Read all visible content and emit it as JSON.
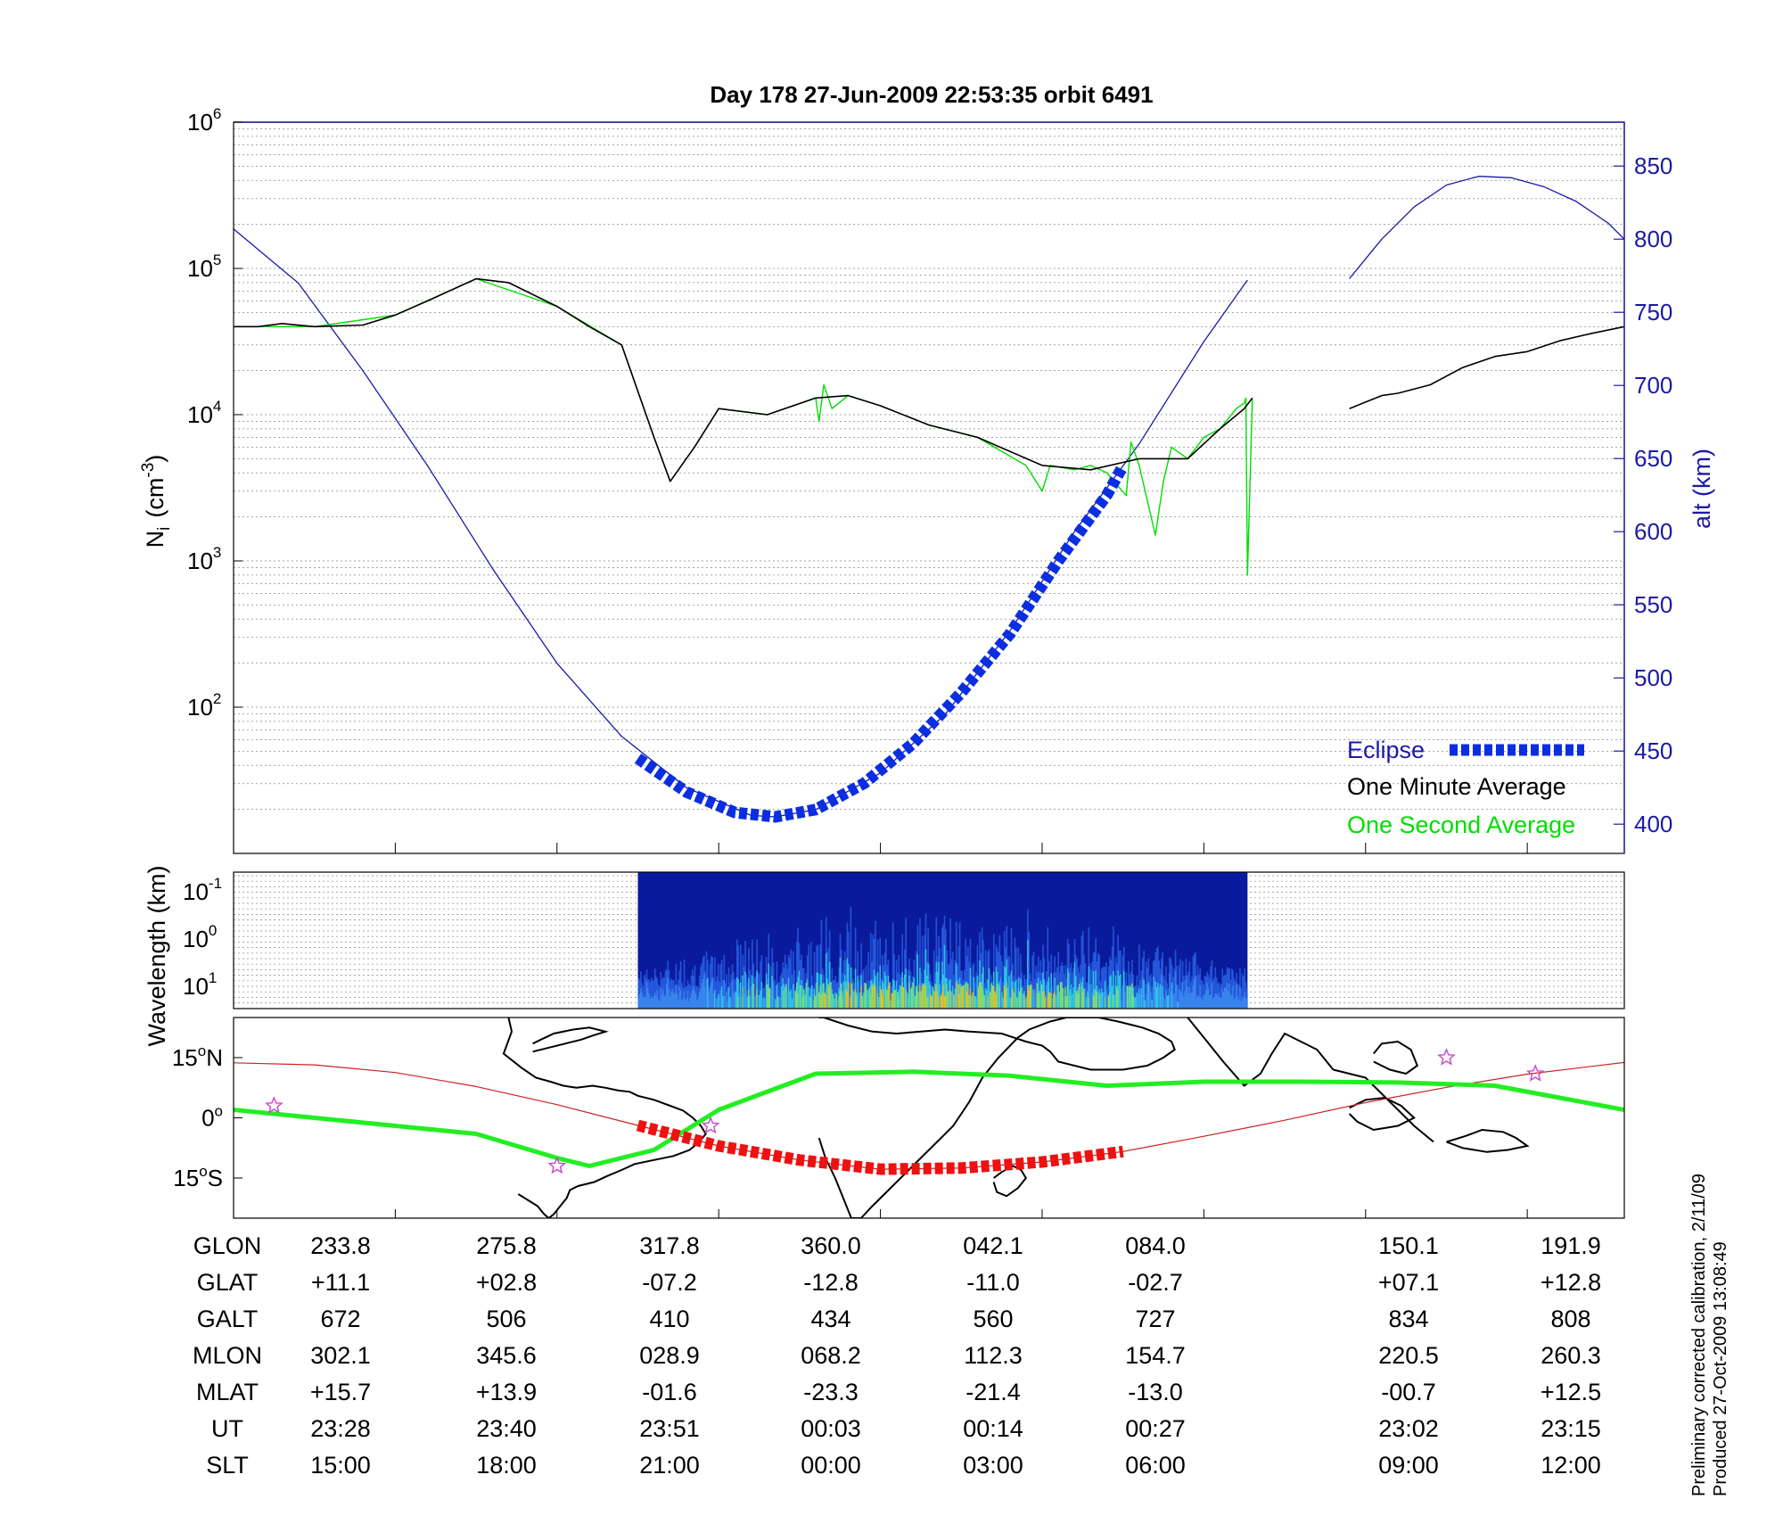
{
  "colors": {
    "altitude": "#1a1aa6",
    "one_second": "#00dd00",
    "one_minute": "#000000",
    "eclipse": "#0a2ee0",
    "eclipse_map": "#ee1111",
    "ground_track": "#cc2222",
    "magnetic_equator": "#22ee22",
    "star_marker": "#cc44cc"
  },
  "chart_data": [
    {
      "type": "line",
      "title": "Day 178  27-Jun-2009 22:53:35   orbit 6491",
      "ylabel": "N",
      "ylabel_sub": "i",
      "ylabel_unit": "(cm",
      "ylabel_exp": "-3",
      "ylabel_close": ")",
      "yscale": "log",
      "ylim": [
        10,
        1000000
      ],
      "yticks": [
        {
          "base": "10",
          "exp": "2",
          "value": 100
        },
        {
          "base": "10",
          "exp": "3",
          "value": 1000
        },
        {
          "base": "10",
          "exp": "4",
          "value": 10000
        },
        {
          "base": "10",
          "exp": "5",
          "value": 100000
        },
        {
          "base": "10",
          "exp": "6",
          "value": 1000000
        }
      ],
      "y2label": "alt (km)",
      "y2lim": [
        380,
        880
      ],
      "y2ticks": [
        "400",
        "450",
        "500",
        "550",
        "600",
        "650",
        "700",
        "750",
        "800",
        "850"
      ],
      "xlim": [
        0,
        8.6
      ],
      "grid": true,
      "legend_position": "bottom-right",
      "legend": {
        "eclipse": "Eclipse",
        "one_minute": "One Minute Average",
        "one_second": "One Second Average"
      },
      "series": [
        {
          "name": "One Minute Average",
          "x": [
            0,
            0.15,
            0.3,
            0.5,
            0.8,
            1.0,
            1.2,
            1.5,
            1.7,
            2.0,
            2.2,
            2.4,
            2.6,
            2.7,
            2.85,
            3.0,
            3.3,
            3.6,
            3.8,
            4.0,
            4.3,
            4.6,
            5.0,
            5.3,
            5.6,
            5.9,
            6.1,
            6.25,
            6.3
          ],
          "y": [
            40000,
            40000,
            42000,
            40000,
            41000,
            48000,
            60000,
            85000,
            80000,
            55000,
            40000,
            30000,
            7000,
            3500,
            6000,
            11000,
            10000,
            13000,
            13500,
            11500,
            8500,
            7000,
            4500,
            4200,
            5000,
            5000,
            8000,
            11000,
            13000
          ]
        },
        {
          "name": "One Second Average",
          "x": [
            0,
            0.5,
            1.0,
            1.5,
            2.0,
            2.4,
            2.6,
            2.7,
            2.85,
            3.0,
            3.3,
            3.6,
            3.62,
            3.65,
            3.7,
            3.8,
            4.0,
            4.3,
            4.6,
            4.9,
            5.0,
            5.05,
            5.2,
            5.3,
            5.4,
            5.52,
            5.55,
            5.6,
            5.7,
            5.75,
            5.8,
            5.9,
            6.0,
            6.1,
            6.2,
            6.25,
            6.26,
            6.27,
            6.3
          ],
          "y": [
            40000,
            40000,
            48000,
            85000,
            55000,
            30000,
            7000,
            3500,
            6000,
            11000,
            10000,
            13000,
            9000,
            16000,
            11000,
            13500,
            11500,
            8500,
            7000,
            4500,
            3000,
            4500,
            4200,
            4500,
            4000,
            2800,
            6500,
            4500,
            1500,
            3500,
            6000,
            5000,
            7000,
            8000,
            11000,
            12000,
            13000,
            800,
            13000
          ]
        },
        {
          "name": "One Minute Average (second segment)",
          "x": [
            6.9,
            7.1,
            7.2,
            7.4,
            7.6,
            7.8,
            8.0,
            8.2,
            8.4,
            8.6
          ],
          "y": [
            11000,
            13500,
            14000,
            16000,
            21000,
            25000,
            27000,
            32000,
            36000,
            40000
          ]
        },
        {
          "name": "alt (km)",
          "axis": "y2",
          "x": [
            0,
            0.4,
            0.8,
            1.2,
            1.6,
            2.0,
            2.4,
            2.8,
            3.2,
            3.35,
            3.6,
            4.0,
            4.4,
            4.8,
            5.2,
            5.6,
            6.0,
            6.27
          ],
          "y": [
            807,
            770,
            710,
            645,
            575,
            510,
            460,
            425,
            406,
            405,
            410,
            435,
            475,
            532,
            600,
            660,
            730,
            772
          ]
        },
        {
          "name": "alt (km) (second segment)",
          "axis": "y2",
          "x": [
            6.9,
            7.1,
            7.3,
            7.5,
            7.7,
            7.9,
            8.1,
            8.3,
            8.5,
            8.6
          ],
          "y": [
            773,
            800,
            822,
            837,
            843,
            842,
            836,
            826,
            811,
            800
          ]
        },
        {
          "name": "Eclipse",
          "axis": "y2",
          "x": [
            2.5,
            2.8,
            3.1,
            3.35,
            3.6,
            3.9,
            4.2,
            4.5,
            4.8,
            5.1,
            5.4,
            5.5
          ],
          "y": [
            445,
            422,
            408,
            405,
            410,
            428,
            455,
            490,
            530,
            580,
            625,
            645
          ]
        }
      ]
    },
    {
      "type": "heatmap",
      "ylabel": "Wavelength (km)",
      "yscale": "log",
      "yticks": [
        {
          "base": "10",
          "exp": "-1"
        },
        {
          "base": "10",
          "exp": "0"
        },
        {
          "base": "10",
          "exp": "1"
        }
      ],
      "x_extent": [
        2.5,
        6.27
      ],
      "xlim": [
        0,
        8.6
      ]
    },
    {
      "type": "line",
      "title": "",
      "yticks": [
        {
          "num": "15",
          "unit": "o",
          "hemi": "N",
          "lat": 15
        },
        {
          "num": "0",
          "unit": "o",
          "hemi": "",
          "lat": 0
        },
        {
          "num": "15",
          "unit": "o",
          "hemi": "S",
          "lat": -15
        }
      ],
      "xlim": [
        0,
        8.6
      ],
      "ylim": [
        -25,
        25
      ],
      "series": [
        {
          "name": "ground track",
          "x": [
            0,
            0.5,
            1.0,
            1.5,
            2.0,
            2.5,
            3.0,
            3.5,
            4.0,
            4.5,
            5.0,
            5.5,
            6.0,
            6.5,
            7.0,
            7.5,
            8.0,
            8.6
          ],
          "y": [
            13.7,
            13.2,
            11.3,
            7.8,
            3.3,
            -1.9,
            -7.0,
            -10.5,
            -12.8,
            -12.5,
            -11.0,
            -8.4,
            -4.6,
            -0.6,
            3.8,
            7.6,
            10.9,
            13.8
          ]
        },
        {
          "name": "eclipse",
          "x": [
            2.5,
            3.0,
            3.5,
            4.0,
            4.5,
            5.0,
            5.5
          ],
          "y": [
            -1.9,
            -7.0,
            -10.5,
            -12.8,
            -12.5,
            -11.0,
            -8.4
          ]
        },
        {
          "name": "magnetic equator",
          "x": [
            0,
            0.5,
            1.0,
            1.5,
            2.0,
            2.2,
            2.6,
            3.0,
            3.4,
            3.6,
            4.2,
            4.8,
            5.4,
            6.0,
            6.6,
            7.2,
            7.8,
            8.2,
            8.6
          ],
          "y": [
            2,
            0,
            -2,
            -4,
            -10,
            -12,
            -8,
            2,
            8,
            11,
            11.5,
            10.5,
            8,
            9,
            9,
            8.8,
            8,
            5,
            2
          ]
        }
      ],
      "markers": [
        {
          "x": 0.25,
          "y": 3
        },
        {
          "x": 2.0,
          "y": -12
        },
        {
          "x": 2.95,
          "y": -2
        },
        {
          "x": 7.5,
          "y": 15
        },
        {
          "x": 8.05,
          "y": 11
        }
      ],
      "coastlines": [
        {
          "x": [
            1.7,
            1.72,
            1.67,
            1.78,
            1.87,
            1.96,
            2.04,
            2.12,
            2.22,
            2.3,
            2.38,
            2.45,
            2.5,
            2.6,
            2.7,
            2.78,
            2.84,
            2.89,
            2.92,
            2.88,
            2.82,
            2.72,
            2.6,
            2.48,
            2.4,
            2.31,
            2.23,
            2.13,
            2.08,
            2.06,
            2.04,
            2.02,
            2.0,
            1.98,
            1.95,
            1.92,
            1.88,
            1.84,
            1.8,
            1.76
          ],
          "y": [
            25,
            21.5,
            16,
            12.5,
            10,
            9,
            8,
            7.5,
            8,
            7.5,
            6.8,
            6.5,
            5.5,
            4.5,
            3,
            1.8,
            0,
            -2,
            -4,
            -6,
            -8,
            -9.5,
            -10.5,
            -11.5,
            -13,
            -14.5,
            -16,
            -17,
            -18,
            -20,
            -21,
            -22,
            -23,
            -24,
            -25,
            -24,
            -22,
            -21,
            -20,
            -19
          ]
        },
        {
          "x": [
            1.85,
            1.95,
            2.05,
            2.15,
            2.22,
            2.3,
            2.2,
            2.1,
            1.98,
            1.9,
            1.85
          ],
          "y": [
            16.5,
            17.5,
            18.5,
            19.5,
            20.5,
            21.5,
            22.5,
            22.0,
            21.0,
            19.5,
            18.5
          ]
        },
        {
          "x": [
            3.62,
            3.65,
            3.8,
            3.95,
            4.1,
            4.25,
            4.4,
            4.55,
            4.75,
            4.9,
            5.0,
            5.05,
            5.1,
            5.3,
            5.5,
            5.65,
            5.75,
            5.82,
            5.8,
            5.72,
            5.62,
            5.47,
            5.35,
            5.15,
            5.05,
            4.92,
            4.85,
            4.73,
            4.63,
            4.55,
            4.45,
            4.35,
            4.25,
            4.15,
            4.05,
            3.95,
            3.88,
            3.82,
            3.78,
            3.72,
            3.66,
            3.62
          ],
          "y": [
            25,
            25,
            23,
            21.5,
            21,
            21.5,
            22,
            21.5,
            21,
            19,
            18,
            16.5,
            14,
            12,
            12,
            13,
            15,
            17,
            19,
            21,
            22.5,
            24,
            25,
            25,
            24,
            22,
            20,
            15,
            10,
            4,
            -2,
            -6,
            -10,
            -14,
            -18,
            -22,
            -25,
            -25,
            -21,
            -15,
            -10,
            -5
          ]
        },
        {
          "x": [
            4.7,
            4.75,
            4.82,
            4.87,
            4.9,
            4.85,
            4.78,
            4.72,
            4.7
          ],
          "y": [
            -15,
            -13.5,
            -12,
            -13,
            -15,
            -17.5,
            -19.5,
            -18.5,
            -16
          ]
        },
        {
          "x": [
            5.9,
            6.0,
            6.12,
            6.25,
            6.35,
            6.42,
            6.5,
            6.6,
            6.7,
            6.8
          ],
          "y": [
            25,
            20,
            14,
            8,
            11,
            16,
            21,
            19,
            17,
            12
          ]
        },
        {
          "x": [
            6.8,
            7.0,
            7.15,
            7.3,
            7.42
          ],
          "y": [
            12,
            10,
            4,
            -2,
            -6
          ]
        },
        {
          "x": [
            7.5,
            7.62,
            7.72,
            7.85,
            7.93,
            8.0,
            7.88,
            7.75,
            7.6,
            7.5
          ],
          "y": [
            -6,
            -4.5,
            -3,
            -3.5,
            -5,
            -7,
            -8,
            -8.5,
            -7.5,
            -6
          ]
        },
        {
          "x": [
            6.9,
            7.0,
            7.12,
            7.22,
            7.3,
            7.2,
            7.05,
            6.95,
            6.9
          ],
          "y": [
            2.5,
            4.5,
            5,
            3,
            0,
            -2,
            -3,
            -1,
            1
          ]
        },
        {
          "x": [
            7.05,
            7.1,
            7.2,
            7.28,
            7.32,
            7.25,
            7.15,
            7.05
          ],
          "y": [
            16,
            18.5,
            19,
            17,
            13,
            11,
            12,
            14
          ]
        }
      ]
    }
  ],
  "info_table": {
    "rows": [
      {
        "label": "GLON",
        "values": [
          "233.8",
          "275.8",
          "317.8",
          "360.0",
          "042.1",
          "084.0",
          "150.1",
          "191.9"
        ]
      },
      {
        "label": "GLAT",
        "values": [
          "+11.1",
          "+02.8",
          "-07.2",
          "-12.8",
          "-11.0",
          "-02.7",
          "+07.1",
          "+12.8"
        ]
      },
      {
        "label": "GALT",
        "values": [
          "672",
          "506",
          "410",
          "434",
          "560",
          "727",
          "834",
          "808"
        ]
      },
      {
        "label": "MLON",
        "values": [
          "302.1",
          "345.6",
          "028.9",
          "068.2",
          "112.3",
          "154.7",
          "220.5",
          "260.3"
        ]
      },
      {
        "label": "MLAT",
        "values": [
          "+15.7",
          "+13.9",
          "-01.6",
          "-23.3",
          "-21.4",
          "-13.0",
          "-00.7",
          "+12.5"
        ]
      },
      {
        "label": "UT",
        "values": [
          "23:28",
          "23:40",
          "23:51",
          "00:03",
          "00:14",
          "00:27",
          "23:02",
          "23:15"
        ]
      },
      {
        "label": "SLT",
        "values": [
          "15:00",
          "18:00",
          "21:00",
          "00:00",
          "03:00",
          "06:00",
          "09:00",
          "12:00"
        ]
      }
    ]
  },
  "footnote": {
    "line1": "Preliminary corrected calibration, 2/11/09",
    "line2": "Produced 27-Oct-2009 13:08:49"
  }
}
